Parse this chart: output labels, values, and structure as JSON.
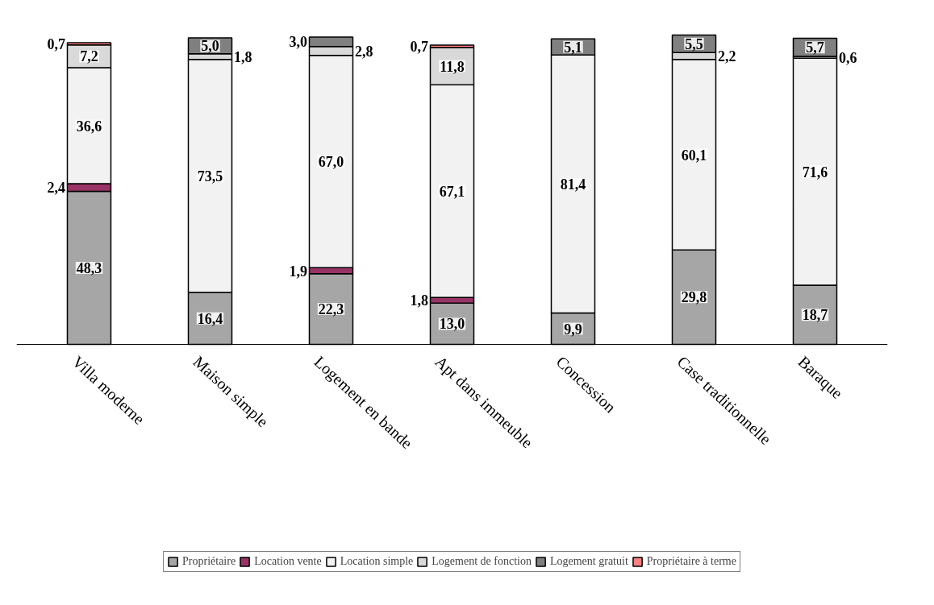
{
  "chart_data": {
    "type": "bar",
    "stacked": true,
    "legend": "bottom",
    "grid": false,
    "categories": [
      "Villa moderne",
      "Maison simple",
      "Logement en bande",
      "Apt dans immeuble",
      "Concession",
      "Case traditionnelle",
      "Baraque"
    ],
    "series": [
      {
        "name": "Propriétaire",
        "color": "#a6a6a6",
        "values": [
          48.3,
          16.4,
          22.3,
          13.0,
          9.9,
          29.8,
          18.7
        ],
        "value_labels": [
          "48,3",
          "16,4",
          "22,3",
          "13,0",
          "9,9",
          "29,8",
          "18,7"
        ]
      },
      {
        "name": "Location vente",
        "color": "#993366",
        "values": [
          2.4,
          null,
          1.9,
          1.8,
          null,
          null,
          null
        ],
        "value_labels": [
          "2,4",
          null,
          "1,9",
          "1,8",
          null,
          null,
          null
        ]
      },
      {
        "name": "Location simple",
        "color": "#f2f2f2",
        "values": [
          36.6,
          73.5,
          67.0,
          67.1,
          81.4,
          60.1,
          71.6
        ],
        "value_labels": [
          "36,6",
          "73,5",
          "67,0",
          "67,1",
          "81,4",
          "60,1",
          "71,6"
        ]
      },
      {
        "name": "Logement de fonction",
        "color": "#d9d9d9",
        "values": [
          7.2,
          1.8,
          2.8,
          11.8,
          null,
          2.2,
          0.6
        ],
        "value_labels": [
          "7,2",
          "1,8",
          "2,8",
          "11,8",
          null,
          "2,2",
          "0,6"
        ]
      },
      {
        "name": "Logement gratuit",
        "color": "#808080",
        "values": [
          null,
          5.0,
          3.0,
          null,
          5.1,
          5.5,
          5.7
        ],
        "value_labels": [
          null,
          "5,0",
          "3,0",
          null,
          "5,1",
          "5,5",
          "5,7"
        ]
      },
      {
        "name": "Propriétaire à terme",
        "color": "#ff8080",
        "values": [
          0.7,
          null,
          null,
          0.7,
          null,
          null,
          null
        ],
        "value_labels": [
          "0,7",
          null,
          null,
          "0,7",
          null,
          null,
          null
        ]
      }
    ]
  }
}
